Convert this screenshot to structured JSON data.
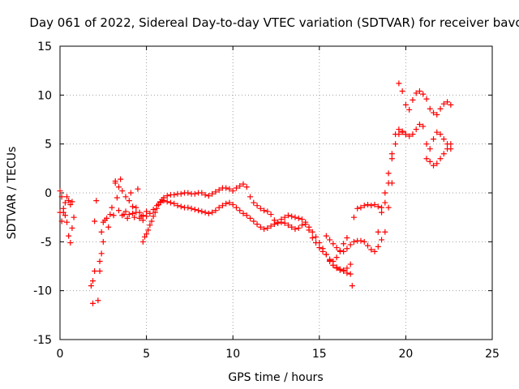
{
  "chart_data": {
    "type": "scatter",
    "title": "Day 061 of 2022, Sidereal Day-to-day VTEC variation (SDTVAR) for receiver bavc",
    "xlabel": "GPS time / hours",
    "ylabel": "SDTVAR / TECUs",
    "xlim": [
      0,
      25
    ],
    "ylim": [
      -15,
      15
    ],
    "x_ticks": [
      "0",
      "5",
      "10",
      "15",
      "20",
      "25"
    ],
    "y_ticks": [
      "-15",
      "-10",
      "-5",
      "0",
      "5",
      "10",
      "15"
    ],
    "grid": true,
    "marker": "+",
    "color": "#ff0000",
    "series": [
      {
        "name": "SDTVAR",
        "x": [
          0.0,
          0.1,
          0.2,
          0.3,
          0.4,
          0.5,
          0.6,
          0.7,
          0.8,
          0.0,
          0.1,
          0.2,
          0.3,
          0.4,
          0.5,
          0.6,
          0.7,
          1.8,
          1.9,
          2.0,
          2.1,
          1.9,
          2.0,
          2.2,
          2.3,
          2.4,
          2.5,
          2.3,
          2.4,
          2.5,
          2.6,
          2.7,
          2.8,
          2.9,
          3.0,
          3.1,
          3.2,
          3.3,
          3.4,
          3.5,
          3.6,
          3.7,
          3.8,
          3.9,
          4.0,
          4.1,
          4.2,
          4.3,
          4.4,
          4.5,
          4.6,
          4.7,
          4.8,
          3.2,
          3.4,
          3.6,
          3.8,
          4.0,
          4.2,
          4.4,
          4.6,
          4.8,
          5.0,
          4.8,
          4.9,
          5.0,
          5.1,
          5.2,
          5.3,
          5.4,
          5.5,
          5.6,
          5.7,
          5.8,
          5.9,
          6.0,
          6.2,
          6.4,
          6.6,
          6.8,
          7.0,
          7.2,
          7.4,
          7.6,
          7.8,
          8.0,
          8.2,
          8.4,
          8.6,
          8.8,
          9.0,
          9.2,
          9.4,
          9.6,
          9.8,
          10.0,
          10.2,
          10.4,
          10.6,
          10.8,
          11.0,
          11.2,
          11.4,
          11.6,
          11.8,
          12.0,
          12.2,
          12.4,
          12.6,
          12.8,
          13.0,
          13.2,
          13.4,
          13.6,
          13.8,
          14.0,
          14.2,
          14.4,
          14.6,
          14.8,
          15.0,
          15.2,
          15.4,
          15.6,
          15.8,
          16.0,
          16.2,
          16.4,
          16.6,
          5.0,
          5.2,
          5.4,
          5.6,
          5.8,
          6.0,
          6.2,
          6.4,
          6.6,
          6.8,
          7.0,
          7.2,
          7.4,
          7.6,
          7.8,
          8.0,
          8.2,
          8.4,
          8.6,
          8.8,
          9.0,
          9.2,
          9.4,
          9.6,
          9.8,
          10.0,
          10.2,
          10.4,
          10.6,
          10.8,
          11.0,
          11.2,
          11.4,
          11.6,
          11.8,
          12.0,
          12.2,
          12.4,
          12.6,
          12.8,
          13.0,
          13.2,
          13.4,
          13.6,
          13.8,
          14.0,
          14.2,
          14.4,
          14.6,
          14.8,
          15.0,
          15.2,
          15.4,
          15.6,
          15.8,
          16.0,
          16.2,
          16.4,
          16.6,
          16.8,
          15.6,
          15.8,
          16.0,
          16.2,
          16.4,
          16.6,
          16.8,
          16.9,
          15.4,
          15.6,
          15.8,
          16.0,
          16.2,
          16.4,
          16.6,
          16.8,
          17.0,
          17.2,
          17.4,
          17.6,
          17.8,
          18.0,
          18.2,
          18.4,
          18.6,
          18.8,
          19.0,
          19.2,
          17.0,
          17.2,
          17.4,
          17.6,
          17.8,
          18.0,
          18.2,
          18.4,
          18.6,
          18.8,
          19.0,
          19.2,
          19.4,
          19.6,
          19.8,
          20.0,
          20.2,
          20.4,
          20.6,
          20.8,
          21.0,
          21.2,
          21.4,
          21.6,
          21.8,
          22.0,
          22.2,
          22.4,
          22.6,
          18.4,
          18.6,
          18.8,
          19.0,
          19.2,
          19.4,
          19.6,
          19.8,
          20.0,
          19.6,
          19.8,
          20.0,
          20.2,
          20.4,
          20.6,
          20.8,
          21.0,
          21.2,
          21.4,
          21.6,
          21.8,
          22.0,
          22.2,
          22.4,
          22.6,
          21.2,
          21.4,
          21.6,
          21.8,
          22.0,
          22.2,
          22.4,
          22.6
        ],
        "y": [
          0.2,
          -0.4,
          -1.6,
          -2.3,
          -3.0,
          -4.4,
          -5.1,
          -3.6,
          -2.5,
          -2.0,
          -2.9,
          -2.0,
          -1.0,
          -0.4,
          -0.8,
          -1.2,
          -0.9,
          -9.5,
          -9.0,
          -8.0,
          -0.8,
          -11.3,
          -2.9,
          -11.0,
          -7.0,
          -6.2,
          -5.0,
          -8.0,
          -4.0,
          -3.0,
          -2.8,
          -2.6,
          -3.5,
          -2.2,
          -1.5,
          -2.3,
          1.2,
          -0.5,
          -1.8,
          1.4,
          -2.3,
          -2.2,
          -1.9,
          -2.6,
          -2.2,
          0.0,
          -2.1,
          -2.5,
          -1.5,
          0.4,
          -2.0,
          -2.4,
          -2.8,
          1.0,
          0.6,
          0.2,
          -0.4,
          -0.8,
          -1.4,
          -2.0,
          -2.6,
          -2.3,
          -1.9,
          -5.0,
          -4.5,
          -4.2,
          -3.8,
          -3.3,
          -2.9,
          -2.4,
          -2.0,
          -1.6,
          -1.2,
          -0.9,
          -0.7,
          -0.5,
          -0.3,
          -0.2,
          -0.2,
          -0.1,
          -0.1,
          0.0,
          0.0,
          -0.1,
          -0.1,
          0.0,
          0.0,
          -0.2,
          -0.3,
          -0.1,
          0.1,
          0.3,
          0.5,
          0.5,
          0.4,
          0.2,
          0.5,
          0.7,
          0.9,
          0.6,
          -0.4,
          -1.0,
          -1.3,
          -1.6,
          -1.8,
          -1.9,
          -2.2,
          -2.8,
          -3.0,
          -2.7,
          -2.5,
          -2.3,
          -2.4,
          -2.5,
          -2.6,
          -2.7,
          -3.0,
          -3.8,
          -4.6,
          -5.1,
          -5.6,
          -6.0,
          -6.3,
          -6.8,
          -7.0,
          -6.6,
          -6.0,
          -5.2,
          -4.6,
          -2.4,
          -2.1,
          -1.7,
          -1.3,
          -1.0,
          -0.8,
          -0.9,
          -1.0,
          -1.1,
          -1.3,
          -1.4,
          -1.5,
          -1.5,
          -1.6,
          -1.7,
          -1.8,
          -1.9,
          -2.0,
          -2.1,
          -2.0,
          -1.8,
          -1.5,
          -1.3,
          -1.1,
          -1.0,
          -1.2,
          -1.5,
          -1.8,
          -2.1,
          -2.3,
          -2.6,
          -2.9,
          -3.2,
          -3.5,
          -3.7,
          -3.6,
          -3.4,
          -3.2,
          -3.1,
          -3.0,
          -3.1,
          -3.3,
          -3.5,
          -3.7,
          -3.6,
          -3.3,
          -3.2,
          -3.5,
          -4.0,
          -4.5,
          -5.1,
          -5.7,
          -6.3,
          -6.9,
          -7.4,
          -7.7,
          -7.9,
          -8.0,
          -8.2,
          -8.3,
          -7.0,
          -7.4,
          -7.6,
          -7.8,
          -7.9,
          -7.7,
          -7.3,
          -9.5,
          -4.4,
          -4.8,
          -5.2,
          -5.6,
          -5.9,
          -6.0,
          -5.7,
          -5.3,
          -5.0,
          -4.9,
          -4.9,
          -5.0,
          -5.4,
          -5.8,
          -6.0,
          -5.5,
          -4.8,
          -4.0,
          -1.5,
          1.0,
          -2.5,
          -1.6,
          -1.5,
          -1.3,
          -1.2,
          -1.3,
          -1.2,
          -1.4,
          -1.5,
          -1.0,
          1.0,
          4.0,
          6.0,
          6.5,
          6.3,
          6.0,
          5.8,
          6.0,
          6.5,
          7.0,
          6.8,
          5.0,
          4.5,
          5.5,
          6.2,
          6.0,
          5.5,
          5.0,
          4.5,
          -4.0,
          -2.0,
          0.0,
          2.0,
          3.5,
          5.0,
          6.0,
          6.2,
          6.0,
          11.2,
          10.4,
          9.0,
          8.5,
          9.5,
          10.2,
          10.4,
          10.1,
          9.6,
          8.6,
          8.2,
          8.0,
          8.6,
          9.1,
          9.3,
          9.0,
          3.5,
          3.2,
          2.8,
          3.0,
          3.5,
          4.0,
          4.5,
          5.0
        ]
      }
    ]
  }
}
